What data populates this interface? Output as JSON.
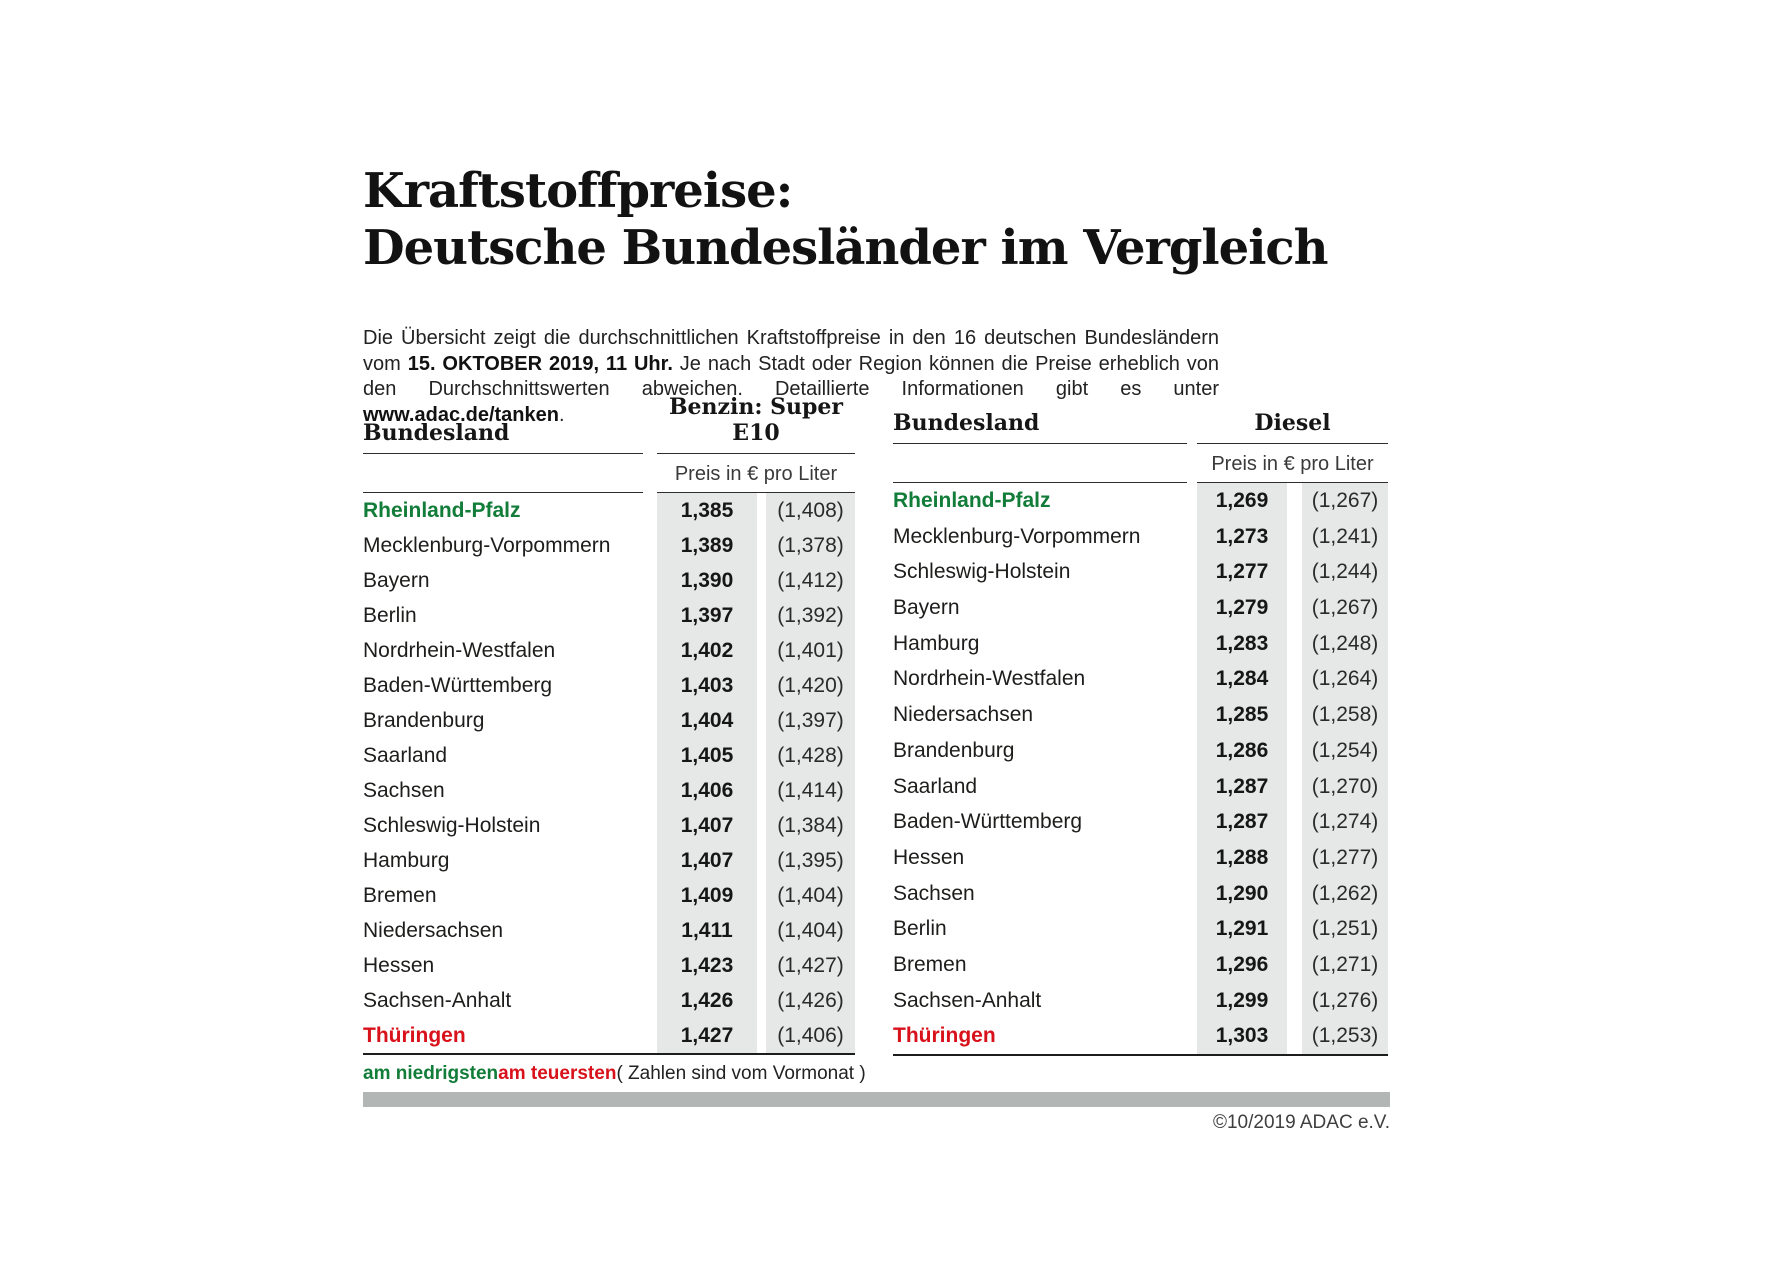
{
  "page": {
    "title_line1": "Kraftstoffpreise:",
    "title_line2": "Deutsche Bundesländer im Vergleich",
    "intro": {
      "s1": "Die Übersicht zeigt die durchschnittlichen Kraftstoffpreise in den 16 deutschen Bundesländern vom ",
      "b1": "15. OKTOBER 2019, 11 Uhr.",
      "s2": " Je nach Stadt oder Region können die Preise erheblich von den Durchschnittswerten abweichen. Detaillierte Informationen gibt es unter ",
      "b2": "www.adac.de/tanken",
      "s3": "."
    },
    "legend": {
      "lowest": "am niedrigsten",
      "highest": "am teuersten",
      "note": "( Zahlen sind vom Vormonat )"
    },
    "copyright": "©10/2019 ADAC e.V.",
    "colors": {
      "green_lowest": "#127c39",
      "red_highest": "#d8111b",
      "cell_background": "#e5e8e6",
      "footer_bar_gray": "#b2b6b4"
    }
  },
  "chart_data": [
    {
      "type": "table",
      "title": "Benzin: Super E10",
      "bundesland_label": "Bundesland",
      "fuel_label": "Benzin: Super E10",
      "price_label": "Preis in € pro Liter",
      "note": "Werte in Klammern sind vom Vormonat",
      "rows": [
        {
          "name": "Rheinland-Pfalz",
          "price": "1,385",
          "prev": "(1,408)",
          "highlight": "green"
        },
        {
          "name": "Mecklenburg-Vorpommern",
          "price": "1,389",
          "prev": "(1,378)",
          "highlight": ""
        },
        {
          "name": "Bayern",
          "price": "1,390",
          "prev": "(1,412)",
          "highlight": ""
        },
        {
          "name": "Berlin",
          "price": "1,397",
          "prev": "(1,392)",
          "highlight": ""
        },
        {
          "name": "Nordrhein-Westfalen",
          "price": "1,402",
          "prev": "(1,401)",
          "highlight": ""
        },
        {
          "name": "Baden-Württemberg",
          "price": "1,403",
          "prev": "(1,420)",
          "highlight": ""
        },
        {
          "name": "Brandenburg",
          "price": "1,404",
          "prev": "(1,397)",
          "highlight": ""
        },
        {
          "name": "Saarland",
          "price": "1,405",
          "prev": "(1,428)",
          "highlight": ""
        },
        {
          "name": "Sachsen",
          "price": "1,406",
          "prev": "(1,414)",
          "highlight": ""
        },
        {
          "name": "Schleswig-Holstein",
          "price": "1,407",
          "prev": "(1,384)",
          "highlight": ""
        },
        {
          "name": "Hamburg",
          "price": "1,407",
          "prev": "(1,395)",
          "highlight": ""
        },
        {
          "name": "Bremen",
          "price": "1,409",
          "prev": "(1,404)",
          "highlight": ""
        },
        {
          "name": "Niedersachsen",
          "price": "1,411",
          "prev": "(1,404)",
          "highlight": ""
        },
        {
          "name": "Hessen",
          "price": "1,423",
          "prev": "(1,427)",
          "highlight": ""
        },
        {
          "name": "Sachsen-Anhalt",
          "price": "1,426",
          "prev": "(1,426)",
          "highlight": ""
        },
        {
          "name": "Thüringen",
          "price": "1,427",
          "prev": "(1,406)",
          "highlight": "red"
        }
      ]
    },
    {
      "type": "table",
      "title": "Diesel",
      "bundesland_label": "Bundesland",
      "fuel_label": "Diesel",
      "price_label": "Preis in € pro Liter",
      "note": "Werte in Klammern sind vom Vormonat",
      "rows": [
        {
          "name": "Rheinland-Pfalz",
          "price": "1,269",
          "prev": "(1,267)",
          "highlight": "green"
        },
        {
          "name": "Mecklenburg-Vorpommern",
          "price": "1,273",
          "prev": "(1,241)",
          "highlight": ""
        },
        {
          "name": "Schleswig-Holstein",
          "price": "1,277",
          "prev": "(1,244)",
          "highlight": ""
        },
        {
          "name": "Bayern",
          "price": "1,279",
          "prev": "(1,267)",
          "highlight": ""
        },
        {
          "name": "Hamburg",
          "price": "1,283",
          "prev": "(1,248)",
          "highlight": ""
        },
        {
          "name": "Nordrhein-Westfalen",
          "price": "1,284",
          "prev": "(1,264)",
          "highlight": ""
        },
        {
          "name": "Niedersachsen",
          "price": "1,285",
          "prev": "(1,258)",
          "highlight": ""
        },
        {
          "name": "Brandenburg",
          "price": "1,286",
          "prev": "(1,254)",
          "highlight": ""
        },
        {
          "name": "Saarland",
          "price": "1,287",
          "prev": "(1,270)",
          "highlight": ""
        },
        {
          "name": "Baden-Württemberg",
          "price": "1,287",
          "prev": "(1,274)",
          "highlight": ""
        },
        {
          "name": "Hessen",
          "price": "1,288",
          "prev": "(1,277)",
          "highlight": ""
        },
        {
          "name": "Sachsen",
          "price": "1,290",
          "prev": "(1,262)",
          "highlight": ""
        },
        {
          "name": "Berlin",
          "price": "1,291",
          "prev": "(1,251)",
          "highlight": ""
        },
        {
          "name": "Bremen",
          "price": "1,296",
          "prev": "(1,271)",
          "highlight": ""
        },
        {
          "name": "Sachsen-Anhalt",
          "price": "1,299",
          "prev": "(1,276)",
          "highlight": ""
        },
        {
          "name": "Thüringen",
          "price": "1,303",
          "prev": "(1,253)",
          "highlight": "red"
        }
      ]
    }
  ]
}
